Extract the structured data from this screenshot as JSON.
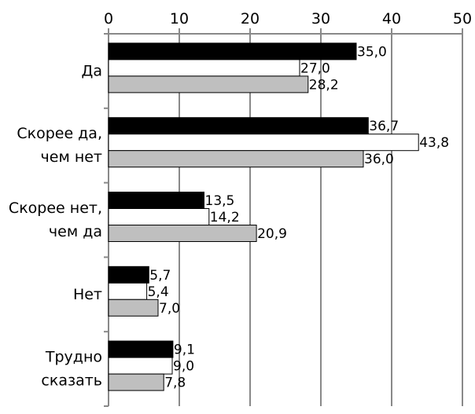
{
  "chart_data": {
    "type": "bar",
    "orientation": "horizontal",
    "categories": [
      [
        "Да"
      ],
      [
        "Скорее да,",
        "чем нет"
      ],
      [
        "Скорее нет,",
        "чем да"
      ],
      [
        "Нет"
      ],
      [
        "Трудно",
        "сказать"
      ]
    ],
    "series": [
      {
        "values": [
          35.0,
          36.7,
          13.5,
          5.7,
          9.1
        ],
        "labels": [
          "35,0",
          "36,7",
          "13,5",
          "5,7",
          "9,1"
        ],
        "fill": "#000000"
      },
      {
        "values": [
          27.0,
          43.8,
          14.2,
          5.4,
          9.0
        ],
        "labels": [
          "27,0",
          "43,8",
          "14,2",
          "5,4",
          "9,0"
        ],
        "fill": "#ffffff"
      },
      {
        "values": [
          28.2,
          36.0,
          20.9,
          7.0,
          7.8
        ],
        "labels": [
          "28,2",
          "36,0",
          "20,9",
          "7,0",
          "7,8"
        ],
        "fill": "#bfbfbf"
      }
    ],
    "xlim": [
      0,
      50
    ],
    "xticks": [
      "0",
      "10",
      "20",
      "30",
      "40",
      "50"
    ],
    "x_axis_position": "top",
    "grid": true,
    "legend": "none",
    "colors": {
      "grid": "#898989",
      "axis": "#898989",
      "bar_stroke": "#000000"
    }
  }
}
